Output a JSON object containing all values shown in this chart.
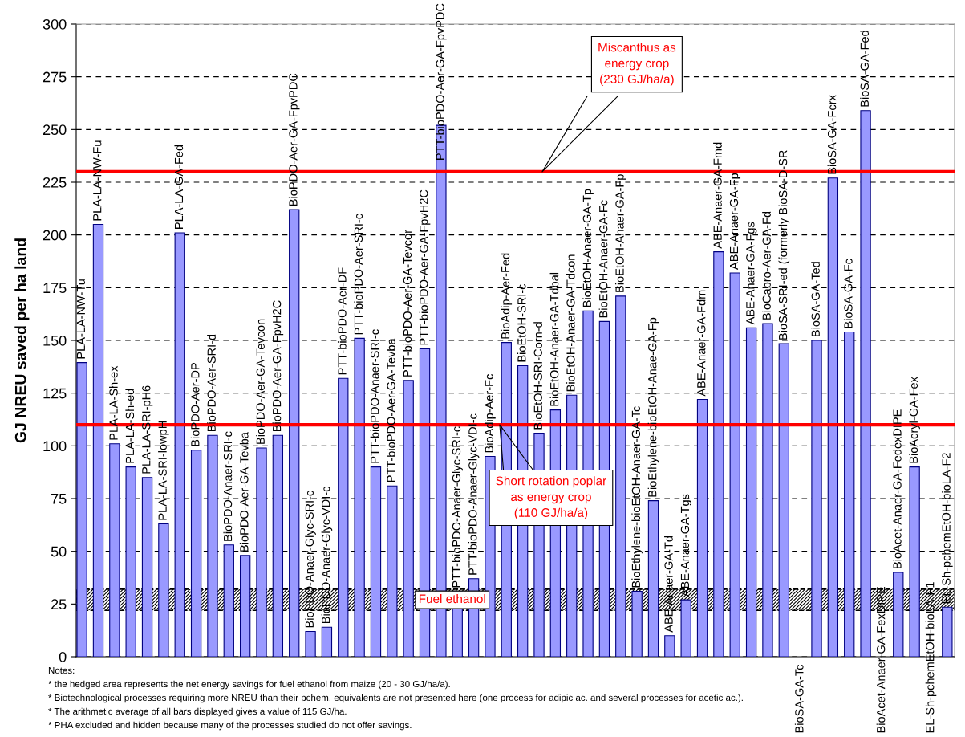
{
  "chart_data": {
    "type": "bar",
    "ylabel": "GJ NREU saved per ha land",
    "categories": [
      "PLA-LA-NW-Tu",
      "PLA-LA-NW-Fu",
      "PLA-LA-Sh-ex",
      "PLA-LA-Sh-ed",
      "PLA-LA-SRI-pH6",
      "PLA-LA-SRI-lowpH",
      "PLA-LA-GA-Fed",
      "BioPDO-Aer-DP",
      "BioPDO-Aer-SRI-d",
      "BioPDO-Anaer-SRI-c",
      "BioPDO-Aer-GA-Tevba",
      "BioPDO-Aer-GA-Tevcon",
      "BioPDO-Aer-GA-FpvH2C",
      "BioPDO-Aer-GA-FpvPDC",
      "BioPDO-Anaer-Glyc-SRI-c",
      "BioPDO-Anaer-Glyc-VDI-c",
      "PTT-bioPDO-Aer-DF",
      "PTT-bioPDO-Aer-SRI-c",
      "PTT-bioPDO-Anaer-SRI-c",
      "PTT-bioPDO-Aer-GA-Tevba",
      "PTT-bioPDO-Aer-GA-Tevcor",
      "PTT-bioPDO-Aer-GA-FpvH2C",
      "PTT-bioPDO-Aer-GA-FpvPDC",
      "PTT-bioPDO-Anaer-Glyc-SRI-c",
      "PTT-bioPDO-Anaer-Glyc-VDI-c",
      "BioAdip-Aer-Fc",
      "BioAdip-Aer-Fed",
      "BioEtOH-SRI-c",
      "BioEtOH-SRI-Corn-d",
      "BioEtOH-Anaer-GA-Tdbal",
      "BioEtOH-Anaer-GA-Tdcon",
      "BioEtOH-Anaer-GA-Tp",
      "BioEtOH-Anaer-GA-Fc",
      "BioEtOH-Anaer-GA-Fp",
      "BioEthylene-bioEtOH-Anaer-GA-Tc",
      "BioEthylene-bioEtOH-Anae-GA-Fp",
      "ABE-Anaer-GA-Td",
      "ABE-Anaer-GA-Tgs",
      "ABE-Anaer-GA-Fdm",
      "ABE-Anaer-GA-Fmd",
      "ABE-Anaer-GA-Fp",
      "ABE-Anaer-GA-Fgs",
      "BioCapro-Aer-GA-Fd",
      "BioSA-SRI-ed (formerly BioSA-D-SR",
      "BioSA-GA-Tc",
      "BioSA-GA-Ted",
      "BioSA-GA-Fcrx",
      "BioSA-GA-Fc",
      "BioSA-GA-Fed",
      "BioAcet-Anaer-GA-FexDIPE",
      "BioAcet-Anaer-GA-FedexDIPE",
      "BioAcryl-GA-Fex",
      "EL-Sh-pchemEtOH-bioLA-F1",
      "EL-Sh-pchemEtOH-bioLA-F2"
    ],
    "values": [
      139.5,
      205,
      101,
      90,
      85,
      63,
      201,
      98,
      105,
      53,
      48,
      99,
      105,
      212,
      12,
      14,
      132,
      151,
      90,
      81,
      131,
      146,
      252,
      31,
      37,
      95,
      149,
      138,
      106,
      117,
      124,
      164,
      159,
      171,
      31,
      74,
      10,
      27,
      122,
      192,
      182,
      156,
      158,
      148.5,
      null,
      150,
      227,
      154,
      259,
      null,
      40,
      90,
      null,
      23.5
    ],
    "color": "#9999ff",
    "ylim": [
      0,
      300
    ],
    "yticks": [
      0,
      25,
      50,
      75,
      100,
      125,
      150,
      175,
      200,
      225,
      250,
      275,
      300
    ],
    "grid": "y",
    "tick_labels": "y",
    "ref_lines": [
      {
        "axis": "y",
        "value": 230,
        "label": "Miscanthus as\nenergy crop\n(230 GJ/ha/a)",
        "color": "#ff0000"
      },
      {
        "axis": "y",
        "value": 110,
        "label": "Short rotation poplar\nas energy crop\n(110 GJ/ha/a)",
        "color": "#ff0000"
      }
    ],
    "bands": [
      {
        "axis": "y",
        "from": 22,
        "to": 32,
        "label": "Fuel ethanol",
        "color": "#000000"
      }
    ],
    "annotations": [
      "Notes:",
      "* the hedged area represents the net energy savings for fuel ethanol from maize (20 - 30 GJ/ha/a).",
      "* Biotechnological processes requiring more NREU than their pchem. equivalents are not presented here (one process for adipic ac. and several processes for acetic ac.).",
      "* The arithmetic average of all bars displayed gives a value of 115 GJ/ha.",
      "* PHA excluded and hidden because many of the processes studied do not offer savings."
    ]
  }
}
